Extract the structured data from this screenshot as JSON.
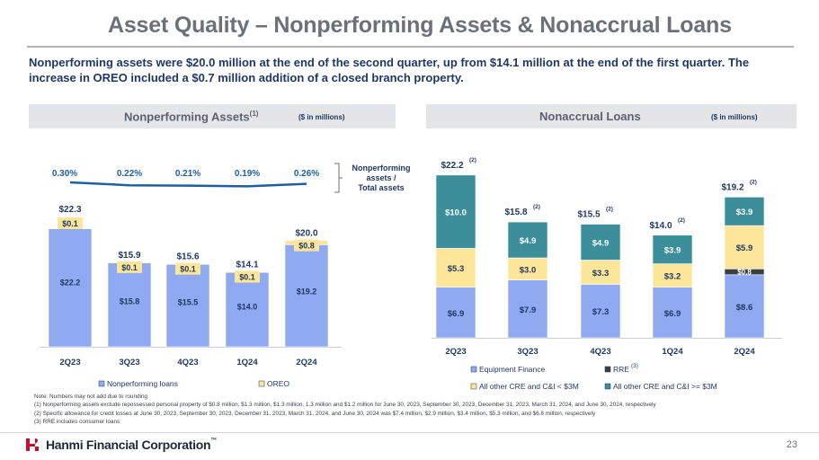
{
  "page": {
    "title": "Asset Quality – Nonperforming Assets & Nonaccrual Loans",
    "subtitle": "Nonperforming assets were $20.0 million at the end of the second quarter, up from $14.1 million at the end of the first quarter. The increase in OREO included a $0.7 million addition of a closed branch property.",
    "page_number": "23",
    "company_name": "Hanmi Financial Corporation",
    "trademark": "™"
  },
  "panels": {
    "left": {
      "title": "Nonperforming Assets",
      "title_sup": "(1)",
      "unit": "($ in millions)"
    },
    "right": {
      "title": "Nonaccrual Loans",
      "unit": "($ in millions)"
    }
  },
  "chart_data": [
    {
      "type": "bar",
      "stacked": true,
      "categories": [
        "2Q23",
        "3Q23",
        "4Q23",
        "1Q24",
        "2Q24"
      ],
      "series": [
        {
          "name": "Nonperforming loans",
          "values": [
            22.2,
            15.8,
            15.5,
            14.0,
            19.2
          ],
          "labels": [
            "$22.2",
            "$15.8",
            "$15.5",
            "$14.0",
            "$19.2"
          ],
          "color": "#8faaf0"
        },
        {
          "name": "OREO",
          "values": [
            0.1,
            0.1,
            0.1,
            0.1,
            0.8
          ],
          "labels": [
            "$0.1",
            "$0.1",
            "$0.1",
            "$0.1",
            "$0.8"
          ],
          "color": "#fde699"
        }
      ],
      "totals": [
        "$22.3",
        "$15.9",
        "$15.6",
        "$14.1",
        "$20.0"
      ],
      "ratio_line": {
        "label_lines": [
          "Nonperforming",
          "assets /",
          "Total assets"
        ],
        "values": [
          0.3,
          0.22,
          0.21,
          0.19,
          0.26
        ],
        "labels": [
          "0.30%",
          "0.22%",
          "0.21%",
          "0.19%",
          "0.26%"
        ],
        "color": "#1f5fa0"
      },
      "ylim": [
        0,
        25
      ],
      "legend_position": "bottom"
    },
    {
      "type": "bar",
      "stacked": true,
      "categories": [
        "2Q23",
        "3Q23",
        "4Q23",
        "1Q24",
        "2Q24"
      ],
      "series": [
        {
          "name": "Equipment Finance",
          "values": [
            6.9,
            7.9,
            7.3,
            6.9,
            8.6
          ],
          "labels": [
            "$6.9",
            "$7.9",
            "$7.3",
            "$6.9",
            "$8.6"
          ],
          "color": "#8faaf0"
        },
        {
          "name": "RRE",
          "name_sup": "(3)",
          "values": [
            0,
            0,
            0,
            0,
            0.8
          ],
          "labels": [
            "",
            "",
            "",
            "",
            "$0.8"
          ],
          "color": "#3b3f44"
        },
        {
          "name": "All other CRE and C&I < $3M",
          "values": [
            5.3,
            3.0,
            3.3,
            3.2,
            5.9
          ],
          "labels": [
            "$5.3",
            "$3.0",
            "$3.3",
            "$3.2",
            "$5.9"
          ],
          "color": "#fde699"
        },
        {
          "name": "All other CRE and C&I >= $3M",
          "values": [
            10.0,
            4.9,
            4.9,
            3.9,
            3.9
          ],
          "labels": [
            "$10.0",
            "$4.9",
            "$4.9",
            "$3.9",
            "$3.9"
          ],
          "color": "#3d8e9b"
        }
      ],
      "totals": [
        "$22.2",
        "$15.8",
        "$15.5",
        "$14.0",
        "$19.2"
      ],
      "totals_sup": "(2)",
      "ylim": [
        0,
        25
      ],
      "legend_position": "bottom"
    }
  ],
  "notes": [
    "Note: Numbers may not add due to rounding",
    "(1)   Nonperforming assets exclude repossessed personal property of $0.8 million, $1.3 million, $1.3 million, 1.3 million and $1.2 million for June 30, 2023, September 30, 2023, December 31, 2023, March 31, 2024, and June 30, 2024, respectively",
    "(2)   Specific allowance for credit losses at June 30, 2023, September 30, 2023, December 31, 2023, March 31, 2024, and June 30, 2024 was $7.4 million, $2.9 million, $3.4 million, $5.3 million, and $6.8 million, respectively",
    "(3)   RRE includes consumer loans"
  ]
}
